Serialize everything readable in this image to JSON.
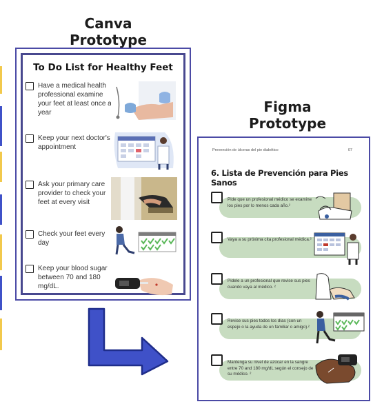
{
  "headings": {
    "canva_line1": "Canva",
    "canva_line2": "Prototype",
    "figma_line1": "Figma",
    "figma_line2": "Prototype"
  },
  "canva": {
    "title": "To Do List for Healthy Feet",
    "items": [
      {
        "text": "Have a medical health professional examine your feet at least once a year",
        "icon": "doctor-examining-foot-icon"
      },
      {
        "text": "Keep your next doctor's appointment",
        "icon": "calendar-doctor-icon"
      },
      {
        "text": "Ask your primary care provider to check your feet at every visit",
        "icon": "provider-checking-foot-icon"
      },
      {
        "text": "Check your feet every day",
        "icon": "person-checking-feet-calendar-icon"
      },
      {
        "text": "Keep your blood sugar between 70 and 180 mg/dL.",
        "icon": "glucose-meter-icon"
      }
    ]
  },
  "figma": {
    "header": "Prevención de úlceras del pie diabético",
    "page_number": "07",
    "title": "6. Lista de Prevención para Pies Sanos",
    "items": [
      {
        "text": "Pide que un profesional médico se examine los pies por lo menos cada año.²",
        "icon": "doctor-examining-foot-icon"
      },
      {
        "text": "Vaya a su próxima cita profesional médica.²",
        "icon": "calendar-doctor-icon"
      },
      {
        "text": "Pidele a un profesional que revise sus pies cuando vaya al médico. ²",
        "icon": "provider-checking-foot-icon"
      },
      {
        "text": "Revise sus pies todos los días (con un espejo o la ayuda de un familiar o amigo).²",
        "icon": "person-checking-feet-calendar-icon"
      },
      {
        "text": "Mantenga su nivel de azúcar en la sangre entre 70 and 180 mg/dL según el consejo de su médico. ²",
        "icon": "glucose-meter-icon"
      }
    ]
  },
  "colors": {
    "card_border": "#4b4aa5",
    "arrow": "#3f51c8",
    "pill": "#c7dcc0",
    "side_marks": [
      "#f2c94c",
      "#3f51c8"
    ]
  }
}
